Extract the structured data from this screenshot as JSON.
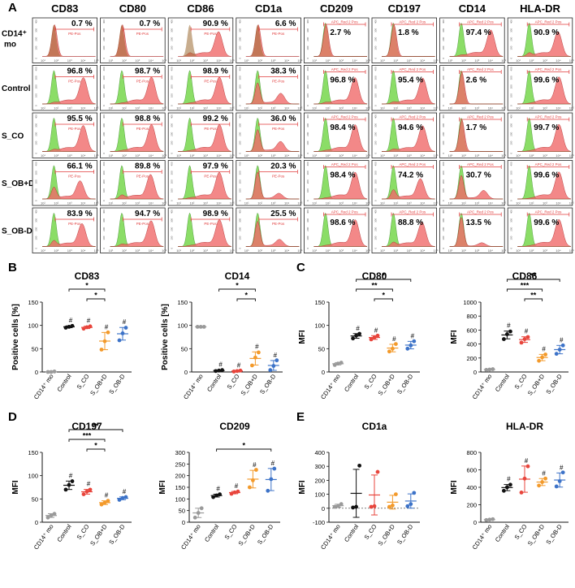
{
  "histograms": {
    "panel_letter": "A",
    "markers": [
      "CD83",
      "CD80",
      "CD86",
      "CD1a",
      "CD209",
      "CD197",
      "CD14",
      "HLA-DR"
    ],
    "row_labels": [
      [
        "CD14⁺",
        "mo"
      ],
      [
        "Control"
      ],
      [
        "S_CO"
      ],
      [
        "S_OB+D"
      ],
      [
        "S_OB-D"
      ]
    ],
    "gate_labels": [
      "PE-Pos",
      "PE-Pos",
      "PE-Pos",
      "PE-Pos",
      "APC_Red 2 Pos",
      "APC_Red 2 Pos",
      "APC_Red 2 Pos",
      "APC_Red 2 Pos"
    ],
    "y_ticks": [
      "0",
      "100",
      "200",
      "300",
      "400"
    ],
    "x_ticks": [
      "10¹",
      "10²",
      "10³",
      "10⁴",
      "10⁵"
    ],
    "percentages": [
      [
        "0.7 %",
        "0.7 %",
        "90.9 %",
        "6.6 %",
        "2.7 %",
        "1.8 %",
        "97.4 %",
        "90.9 %"
      ],
      [
        "96.8 %",
        "98.7 %",
        "98.9 %",
        "38.3 %",
        "96.8 %",
        "95.4 %",
        "2.6 %",
        "99.6 %"
      ],
      [
        "95.5 %",
        "98.8 %",
        "99.2 %",
        "36.0 %",
        "98.4 %",
        "94.6 %",
        "1.7 %",
        "99.7 %"
      ],
      [
        "66.1 %",
        "89.8 %",
        "97.9 %",
        "20.3 %",
        "98.4 %",
        "74.2 %",
        "30.7 %",
        "99.6 %"
      ],
      [
        "83.9 %",
        "94.7 %",
        "98.9 %",
        "25.5 %",
        "98.6 %",
        "88.8 %",
        "13.5 %",
        "99.6 %"
      ]
    ],
    "colors": {
      "control_isotype": "#7ed957",
      "stained": "#f06a6a",
      "overlap": "#9a6a32",
      "gate": "#e03a3a"
    }
  },
  "chart_data": [
    {
      "panel": "B",
      "type": "scatter",
      "title": "CD83",
      "ylabel": "Positive cells [%]",
      "ylim": [
        0,
        150
      ],
      "yticks": [
        0,
        50,
        100,
        150
      ],
      "categories": [
        "CD14⁺ mo",
        "Control",
        "S_CO",
        "S_OB+D",
        "S_OB-D"
      ],
      "points": [
        [
          0,
          0,
          1
        ],
        [
          95,
          97,
          99
        ],
        [
          93,
          96,
          98
        ],
        [
          48,
          66,
          85
        ],
        [
          68,
          83,
          95
        ]
      ],
      "sig": [
        {
          "from": 1,
          "to": 3,
          "level": 1,
          "label": "*"
        },
        {
          "from": 2,
          "to": 3,
          "level": 0,
          "label": "*"
        }
      ],
      "hash": [
        false,
        true,
        true,
        true,
        true
      ]
    },
    {
      "panel": "B",
      "type": "scatter",
      "title": "CD14",
      "ylabel": "Positive cells [%]",
      "ylim": [
        0,
        150
      ],
      "yticks": [
        0,
        50,
        100,
        150
      ],
      "categories": [
        "CD14⁺ mo",
        "Control",
        "S_CO",
        "S_OB+D",
        "S_OB-D"
      ],
      "points": [
        [
          97,
          97,
          97
        ],
        [
          2,
          3,
          4
        ],
        [
          1,
          2,
          3
        ],
        [
          14,
          31,
          42
        ],
        [
          4,
          13,
          25
        ]
      ],
      "sig": [
        {
          "from": 1,
          "to": 3,
          "level": 1,
          "label": "*"
        },
        {
          "from": 2,
          "to": 3,
          "level": 0,
          "label": "*"
        }
      ],
      "hash": [
        false,
        true,
        true,
        true,
        true
      ]
    },
    {
      "panel": "C",
      "type": "scatter",
      "title": "CD80",
      "ylabel": "MFI",
      "ylim": [
        0,
        150
      ],
      "yticks": [
        0,
        50,
        100,
        150
      ],
      "categories": [
        "CD14⁺ mo",
        "Control",
        "S_CO",
        "S_OB+D",
        "S_OB-D"
      ],
      "points": [
        [
          15,
          18,
          20
        ],
        [
          72,
          78,
          82
        ],
        [
          70,
          74,
          78
        ],
        [
          44,
          50,
          60
        ],
        [
          50,
          57,
          66
        ]
      ],
      "sig": [
        {
          "from": 1,
          "to": 4,
          "level": 2,
          "label": "*"
        },
        {
          "from": 1,
          "to": 3,
          "level": 1,
          "label": "**"
        },
        {
          "from": 2,
          "to": 3,
          "level": 0,
          "label": "*"
        }
      ],
      "hash": [
        false,
        true,
        true,
        true,
        true
      ]
    },
    {
      "panel": "C",
      "type": "scatter",
      "title": "CD86",
      "ylabel": "MFI",
      "ylim": [
        0,
        1000
      ],
      "yticks": [
        0,
        200,
        400,
        600,
        800,
        1000
      ],
      "categories": [
        "CD14⁺ mo",
        "Control",
        "S_CO",
        "S_OB+D",
        "S_OB-D"
      ],
      "points": [
        [
          30,
          35,
          40
        ],
        [
          470,
          540,
          580
        ],
        [
          420,
          470,
          500
        ],
        [
          160,
          210,
          250
        ],
        [
          260,
          320,
          380
        ]
      ],
      "sig": [
        {
          "from": 1,
          "to": 4,
          "level": 2,
          "label": "**"
        },
        {
          "from": 1,
          "to": 3,
          "level": 1,
          "label": "***"
        },
        {
          "from": 2,
          "to": 3,
          "level": 0,
          "label": "**"
        }
      ],
      "hash": [
        false,
        true,
        true,
        true,
        true
      ]
    },
    {
      "panel": "D",
      "type": "scatter",
      "title": "CD197",
      "ylabel": "MFI",
      "ylim": [
        0,
        150
      ],
      "yticks": [
        0,
        50,
        100,
        150
      ],
      "categories": [
        "CD14⁺ mo",
        "Control",
        "S_CO",
        "S_OB+D",
        "S_OB-D"
      ],
      "points": [
        [
          10,
          15,
          18
        ],
        [
          70,
          80,
          88
        ],
        [
          60,
          66,
          70
        ],
        [
          38,
          42,
          46
        ],
        [
          48,
          52,
          54
        ]
      ],
      "sig": [
        {
          "from": 1,
          "to": 4,
          "level": 2,
          "label": "**"
        },
        {
          "from": 1,
          "to": 3,
          "level": 1,
          "label": "***"
        },
        {
          "from": 2,
          "to": 3,
          "level": 0,
          "label": "*"
        }
      ],
      "hash": [
        false,
        true,
        true,
        true,
        true
      ]
    },
    {
      "panel": "D",
      "type": "scatter",
      "title": "CD209",
      "ylabel": "MFI",
      "ylim": [
        0,
        300
      ],
      "yticks": [
        0,
        50,
        100,
        150,
        200,
        250,
        300
      ],
      "categories": [
        "CD14⁺ mo",
        "Control",
        "S_CO",
        "S_OB+D",
        "S_OB-D"
      ],
      "points": [
        [
          20,
          40,
          60
        ],
        [
          108,
          115,
          120
        ],
        [
          122,
          128,
          132
        ],
        [
          150,
          180,
          225
        ],
        [
          135,
          185,
          230
        ]
      ],
      "sig": [
        {
          "from": 1,
          "to": 4,
          "level": 0,
          "label": "*"
        }
      ],
      "hash": [
        false,
        true,
        true,
        true,
        true
      ]
    },
    {
      "panel": "E",
      "type": "scatter",
      "title": "CD1a",
      "ylabel": "MFI",
      "ylim": [
        -100,
        400
      ],
      "yticks": [
        -100,
        0,
        100,
        200,
        300,
        400
      ],
      "zero_line": true,
      "categories": [
        "CD14⁺ mo",
        "Control",
        "S_CO",
        "S_OB+D",
        "S_OB-D"
      ],
      "points": [
        [
          10,
          15,
          30
        ],
        [
          5,
          10,
          305
        ],
        [
          10,
          15,
          260
        ],
        [
          10,
          20,
          100
        ],
        [
          15,
          30,
          110
        ]
      ],
      "sig": [],
      "hash": [
        false,
        false,
        false,
        false,
        false
      ]
    },
    {
      "panel": "E",
      "type": "scatter",
      "title": "HLA-DR",
      "ylabel": "MFI",
      "ylim": [
        0,
        800
      ],
      "yticks": [
        0,
        200,
        400,
        600,
        800
      ],
      "categories": [
        "CD14⁺ mo",
        "Control",
        "S_CO",
        "S_OB+D",
        "S_OB-D"
      ],
      "points": [
        [
          25,
          30,
          35
        ],
        [
          360,
          400,
          430
        ],
        [
          340,
          500,
          640
        ],
        [
          420,
          460,
          500
        ],
        [
          410,
          470,
          570
        ]
      ],
      "sig": [],
      "hash": [
        false,
        true,
        true,
        true,
        true
      ]
    }
  ],
  "panel_labels": [
    "B",
    "C",
    "D",
    "E"
  ],
  "group_colors": [
    "#9a9a9a",
    "#111111",
    "#e8453c",
    "#f39a2b",
    "#3d73c8"
  ],
  "hash_symbol": "#"
}
